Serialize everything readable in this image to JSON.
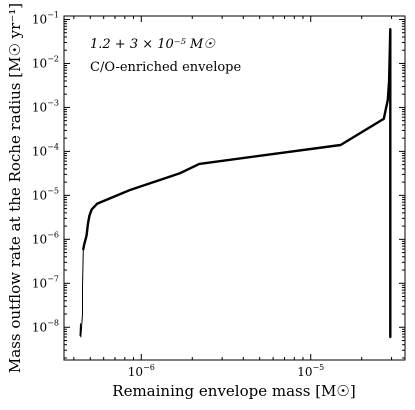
{
  "chart_data": {
    "type": "line",
    "title": "",
    "xlabel": "Remaining envelope mass [M☉]",
    "ylabel": "Mass outflow rate at the Roche radius [M☉ yr⁻¹]",
    "xscale": "log",
    "yscale": "log",
    "xlim": [
      3.5e-07,
      3.6e-05
    ],
    "ylim": [
      1.8e-09,
      0.12
    ],
    "x_ticks": [
      {
        "value": 1e-06,
        "base": "10",
        "exp": "−6"
      },
      {
        "value": 1e-05,
        "base": "10",
        "exp": "−5"
      }
    ],
    "y_ticks": [
      {
        "value": 1e-08,
        "base": "10",
        "exp": "−8"
      },
      {
        "value": 1e-07,
        "base": "10",
        "exp": "−7"
      },
      {
        "value": 1e-06,
        "base": "10",
        "exp": "−6"
      },
      {
        "value": 1e-05,
        "base": "10",
        "exp": "−5"
      },
      {
        "value": 0.0001,
        "base": "10",
        "exp": "−4"
      },
      {
        "value": 0.001,
        "base": "10",
        "exp": "−3"
      },
      {
        "value": 0.01,
        "base": "10",
        "exp": "−2"
      },
      {
        "value": 0.1,
        "base": "10",
        "exp": "−1"
      }
    ],
    "annotations": [
      "1.2 + 3 × 10⁻⁵ M☉",
      "C/O-enriched envelope"
    ],
    "series": [
      {
        "color": "#000000",
        "points": [
          [
            2.95e-05,
            0.06
          ],
          [
            2.95e-05,
            6e-09
          ],
          [
            2.95e-05,
            0.06
          ],
          [
            2.9e-05,
            0.004
          ],
          [
            2.85e-05,
            0.0015
          ],
          [
            2.7e-05,
            0.00055
          ],
          [
            1.5e-05,
            0.00014
          ],
          [
            2.2e-06,
            5.2e-05
          ],
          [
            1.7e-06,
            3.2e-05
          ],
          [
            8.5e-07,
            1.3e-05
          ],
          [
            5.5e-07,
            6.5e-06
          ],
          [
            5.1e-07,
            4.8e-06
          ],
          [
            4.95e-07,
            3.5e-06
          ],
          [
            4.85e-07,
            2.3e-06
          ],
          [
            4.75e-07,
            1.2e-06
          ],
          [
            4.6e-07,
            7.5e-07
          ],
          [
            4.55e-07,
            6e-07
          ]
        ]
      },
      {
        "color": "#000000",
        "points": [
          [
            4.55e-07,
            6e-07
          ],
          [
            4.5e-07,
            8e-08
          ],
          [
            4.5e-07,
            2e-08
          ],
          [
            4.45e-07,
            1.1e-08
          ],
          [
            4.4e-07,
            6e-09
          ],
          [
            4.38e-07,
            1.2e-08
          ],
          [
            4.35e-07,
            6.5e-09
          ],
          [
            4.42e-07,
            9e-09
          ]
        ]
      }
    ]
  },
  "colors": {
    "line": "#000000",
    "axes": "#000000",
    "background": "#ffffff"
  }
}
